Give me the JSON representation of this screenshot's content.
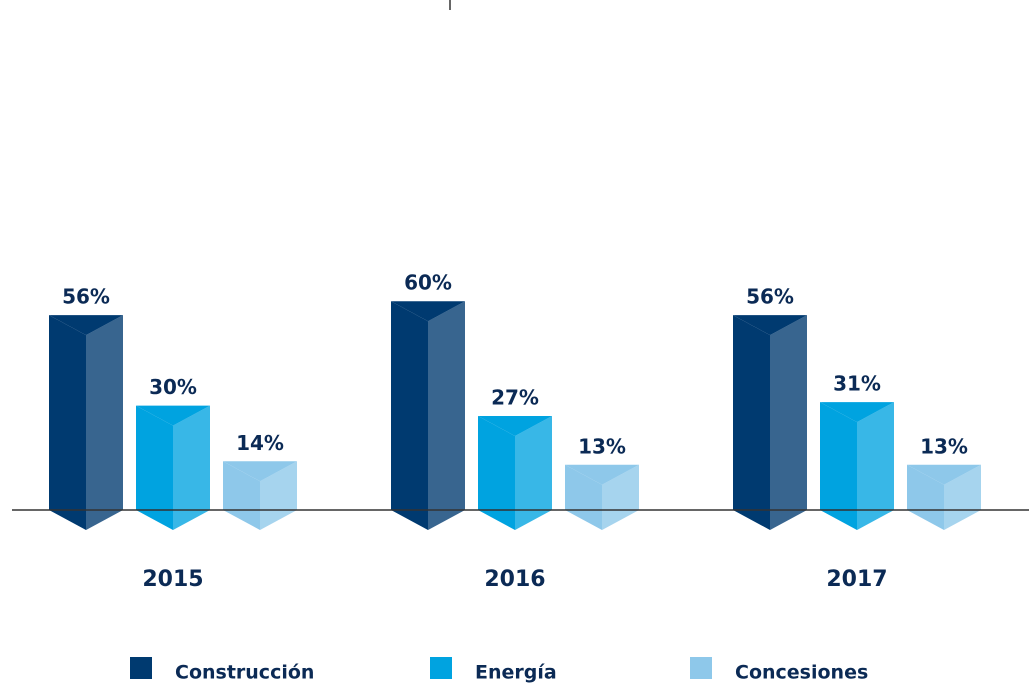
{
  "chart_data": {
    "type": "bar",
    "categories": [
      "2015",
      "2016",
      "2017"
    ],
    "series": [
      {
        "name": "Construcción",
        "color": "#003a70",
        "values": [
          56,
          60,
          56
        ],
        "value_labels": [
          "56%",
          "60%",
          "56%"
        ]
      },
      {
        "name": "Energía",
        "color": "#00a3e0",
        "values": [
          30,
          27,
          31
        ],
        "value_labels": [
          "30%",
          "27%",
          "31%"
        ]
      },
      {
        "name": "Concesiones",
        "color": "#8ec8ea",
        "values": [
          14,
          13,
          13
        ],
        "value_labels": [
          "14%",
          "13%",
          "13%"
        ]
      }
    ],
    "ylim": [
      0,
      100
    ]
  }
}
